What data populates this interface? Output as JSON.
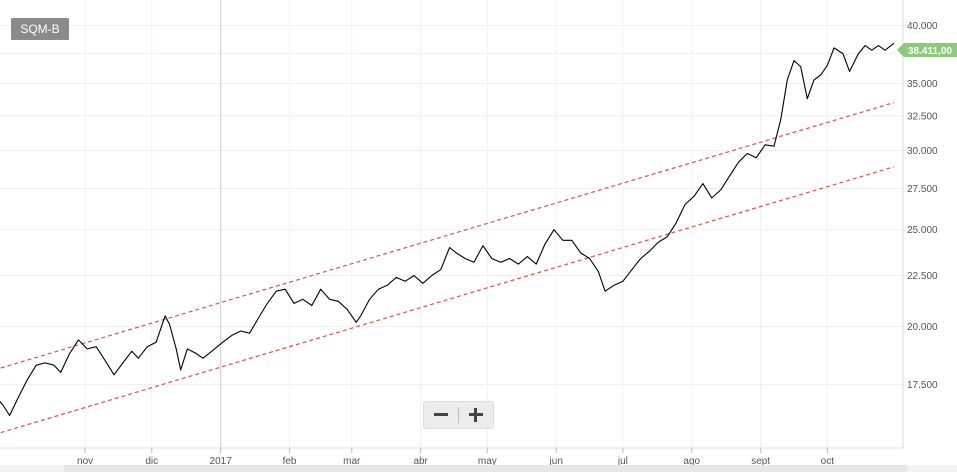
{
  "ticker": "SQM-B",
  "last_price_label": "38.411,00",
  "zoom": {
    "out_symbol": "−",
    "in_symbol": "+"
  },
  "colors": {
    "price_line": "#000000",
    "channel": "#d9534f",
    "last_price_badge": "#8cc97a",
    "ticker_badge": "#8a8a8a",
    "grid": "#eeeeee"
  },
  "chart_data": {
    "type": "line",
    "title": "",
    "xlabel": "",
    "ylabel": "",
    "y_scale": "log",
    "ylim": [
      15300,
      40800
    ],
    "xlim": [
      "2016-09-21",
      "2017-10-31"
    ],
    "grid": true,
    "legend": "none",
    "x_tick_labels": [
      {
        "label": "sept",
        "date": "2016-09-01"
      },
      {
        "label": "nov",
        "date": "2016-11-01"
      },
      {
        "label": "dic",
        "date": "2016-12-01"
      },
      {
        "label": "2017",
        "date": "2017-01-01"
      },
      {
        "label": "feb",
        "date": "2017-02-01"
      },
      {
        "label": "mar",
        "date": "2017-03-01"
      },
      {
        "label": "abr",
        "date": "2017-04-01"
      },
      {
        "label": "may",
        "date": "2017-05-01"
      },
      {
        "label": "jun",
        "date": "2017-06-01"
      },
      {
        "label": "jul",
        "date": "2017-07-01"
      },
      {
        "label": "ago",
        "date": "2017-08-01"
      },
      {
        "label": "sept",
        "date": "2017-09-01"
      },
      {
        "label": "oct",
        "date": "2017-10-01"
      }
    ],
    "y_ticks": [
      17500,
      20000,
      22500,
      25000,
      27500,
      30000,
      32500,
      35000,
      37500,
      40000
    ],
    "y_tick_labels": [
      "17.500",
      "20.000",
      "22.500",
      "25.000",
      "27.500",
      "30.000",
      "32.500",
      "35.000",
      "37.500",
      "40.000"
    ],
    "series": [
      {
        "type": "line",
        "points": [
          [
            "2016-09-21",
            17100
          ],
          [
            "2016-09-25",
            16700
          ],
          [
            "2016-09-28",
            16300
          ],
          [
            "2016-10-02",
            17000
          ],
          [
            "2016-10-06",
            17700
          ],
          [
            "2016-10-10",
            18300
          ],
          [
            "2016-10-14",
            18400
          ],
          [
            "2016-10-18",
            18300
          ],
          [
            "2016-10-21",
            18000
          ],
          [
            "2016-10-25",
            18800
          ],
          [
            "2016-10-29",
            19400
          ],
          [
            "2016-11-02",
            19000
          ],
          [
            "2016-11-06",
            19100
          ],
          [
            "2016-11-10",
            18500
          ],
          [
            "2016-11-14",
            17900
          ],
          [
            "2016-11-18",
            18400
          ],
          [
            "2016-11-22",
            18900
          ],
          [
            "2016-11-25",
            18600
          ],
          [
            "2016-11-29",
            19100
          ],
          [
            "2016-12-03",
            19300
          ],
          [
            "2016-12-07",
            20500
          ],
          [
            "2016-12-09",
            20100
          ],
          [
            "2016-12-12",
            19000
          ],
          [
            "2016-12-14",
            18100
          ],
          [
            "2016-12-17",
            19000
          ],
          [
            "2016-12-21",
            18800
          ],
          [
            "2016-12-24",
            18600
          ],
          [
            "2016-12-28",
            18900
          ],
          [
            "2017-01-02",
            19300
          ],
          [
            "2017-01-06",
            19600
          ],
          [
            "2017-01-10",
            19800
          ],
          [
            "2017-01-14",
            19700
          ],
          [
            "2017-01-18",
            20400
          ],
          [
            "2017-01-22",
            21100
          ],
          [
            "2017-01-26",
            21700
          ],
          [
            "2017-01-30",
            21800
          ],
          [
            "2017-02-03",
            21100
          ],
          [
            "2017-02-07",
            21300
          ],
          [
            "2017-02-11",
            21000
          ],
          [
            "2017-02-15",
            21800
          ],
          [
            "2017-02-19",
            21300
          ],
          [
            "2017-02-23",
            21200
          ],
          [
            "2017-02-27",
            20800
          ],
          [
            "2017-03-03",
            20200
          ],
          [
            "2017-03-05",
            20500
          ],
          [
            "2017-03-09",
            21300
          ],
          [
            "2017-03-13",
            21800
          ],
          [
            "2017-03-17",
            22000
          ],
          [
            "2017-03-21",
            22400
          ],
          [
            "2017-03-25",
            22200
          ],
          [
            "2017-03-29",
            22500
          ],
          [
            "2017-04-02",
            22100
          ],
          [
            "2017-04-06",
            22500
          ],
          [
            "2017-04-10",
            22800
          ],
          [
            "2017-04-14",
            24000
          ],
          [
            "2017-04-17",
            23700
          ],
          [
            "2017-04-21",
            23400
          ],
          [
            "2017-04-25",
            23200
          ],
          [
            "2017-04-29",
            24100
          ],
          [
            "2017-05-03",
            23400
          ],
          [
            "2017-05-07",
            23200
          ],
          [
            "2017-05-11",
            23400
          ],
          [
            "2017-05-15",
            23100
          ],
          [
            "2017-05-19",
            23500
          ],
          [
            "2017-05-23",
            23100
          ],
          [
            "2017-05-27",
            24200
          ],
          [
            "2017-05-31",
            25000
          ],
          [
            "2017-06-04",
            24400
          ],
          [
            "2017-06-08",
            24400
          ],
          [
            "2017-06-12",
            23700
          ],
          [
            "2017-06-16",
            23400
          ],
          [
            "2017-06-20",
            22700
          ],
          [
            "2017-06-23",
            21700
          ],
          [
            "2017-06-27",
            22000
          ],
          [
            "2017-07-01",
            22200
          ],
          [
            "2017-07-05",
            22800
          ],
          [
            "2017-07-09",
            23400
          ],
          [
            "2017-07-13",
            23800
          ],
          [
            "2017-07-17",
            24300
          ],
          [
            "2017-07-21",
            24600
          ],
          [
            "2017-07-25",
            25400
          ],
          [
            "2017-07-29",
            26500
          ],
          [
            "2017-08-02",
            27000
          ],
          [
            "2017-08-06",
            27800
          ],
          [
            "2017-08-10",
            26900
          ],
          [
            "2017-08-14",
            27400
          ],
          [
            "2017-08-18",
            28300
          ],
          [
            "2017-08-22",
            29200
          ],
          [
            "2017-08-26",
            29800
          ],
          [
            "2017-08-30",
            29500
          ],
          [
            "2017-09-03",
            30400
          ],
          [
            "2017-09-07",
            30300
          ],
          [
            "2017-09-10",
            32200
          ],
          [
            "2017-09-13",
            35300
          ],
          [
            "2017-09-16",
            36900
          ],
          [
            "2017-09-19",
            36400
          ],
          [
            "2017-09-22",
            33800
          ],
          [
            "2017-09-25",
            35300
          ],
          [
            "2017-09-28",
            35700
          ],
          [
            "2017-10-01",
            36500
          ],
          [
            "2017-10-04",
            38000
          ],
          [
            "2017-10-08",
            37500
          ],
          [
            "2017-10-11",
            36000
          ],
          [
            "2017-10-15",
            37500
          ],
          [
            "2017-10-18",
            38200
          ],
          [
            "2017-10-21",
            37800
          ],
          [
            "2017-10-24",
            38200
          ],
          [
            "2017-10-27",
            37800
          ],
          [
            "2017-10-31",
            38411
          ]
        ]
      },
      {
        "type": "line",
        "style": "dashed",
        "points": [
          [
            "2016-09-21",
            18100
          ],
          [
            "2017-10-31",
            33500
          ]
        ]
      },
      {
        "type": "line",
        "style": "dashed",
        "points": [
          [
            "2016-09-21",
            15600
          ],
          [
            "2017-10-31",
            28900
          ]
        ]
      }
    ]
  }
}
